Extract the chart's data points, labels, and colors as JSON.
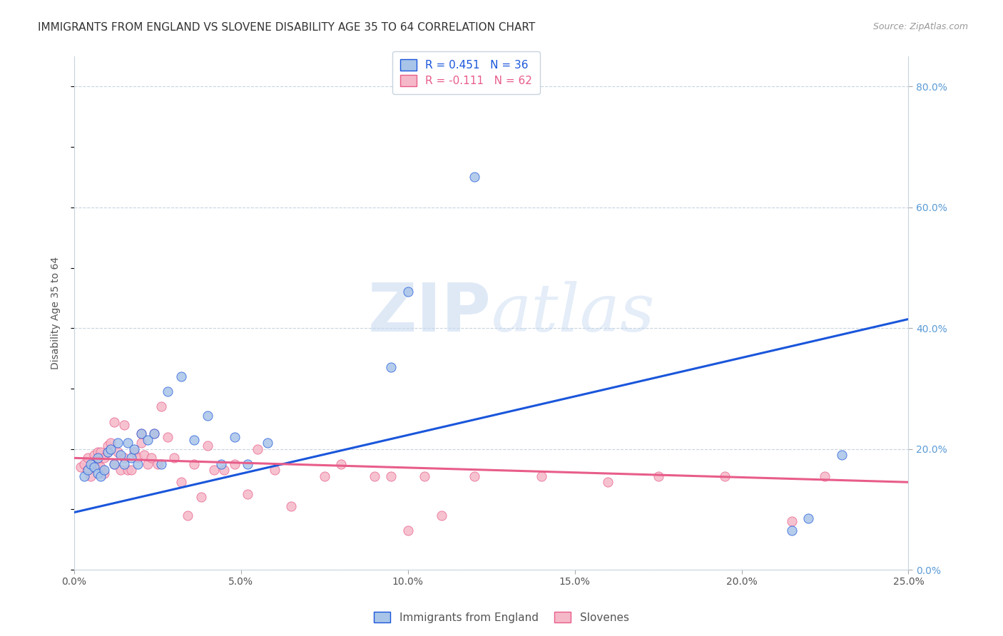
{
  "title": "IMMIGRANTS FROM ENGLAND VS SLOVENE DISABILITY AGE 35 TO 64 CORRELATION CHART",
  "source": "Source: ZipAtlas.com",
  "ylabel": "Disability Age 35 to 64",
  "xlim": [
    0.0,
    0.25
  ],
  "ylim": [
    0.0,
    0.85
  ],
  "xticks": [
    0.0,
    0.05,
    0.1,
    0.15,
    0.2,
    0.25
  ],
  "xtick_labels": [
    "0.0%",
    "5.0%",
    "10.0%",
    "15.0%",
    "20.0%",
    "25.0%"
  ],
  "yticks_right": [
    0.0,
    0.2,
    0.4,
    0.6,
    0.8
  ],
  "ytick_labels_right": [
    "0.0%",
    "20.0%",
    "40.0%",
    "60.0%",
    "80.0%"
  ],
  "blue_R": 0.451,
  "blue_N": 36,
  "pink_R": -0.111,
  "pink_N": 62,
  "blue_color": "#a8c4e8",
  "pink_color": "#f5b8c8",
  "blue_line_color": "#1a56db",
  "pink_line_color": "#e85d8a",
  "legend_label_blue": "Immigrants from England",
  "legend_label_pink": "Slovenes",
  "blue_scatter_x": [
    0.003,
    0.004,
    0.005,
    0.006,
    0.007,
    0.007,
    0.008,
    0.009,
    0.01,
    0.011,
    0.012,
    0.013,
    0.014,
    0.015,
    0.016,
    0.017,
    0.018,
    0.019,
    0.02,
    0.022,
    0.024,
    0.026,
    0.028,
    0.032,
    0.036,
    0.04,
    0.044,
    0.048,
    0.052,
    0.058,
    0.095,
    0.1,
    0.12,
    0.215,
    0.22,
    0.23
  ],
  "blue_scatter_y": [
    0.155,
    0.165,
    0.175,
    0.17,
    0.16,
    0.185,
    0.155,
    0.165,
    0.195,
    0.2,
    0.175,
    0.21,
    0.19,
    0.175,
    0.21,
    0.185,
    0.2,
    0.175,
    0.225,
    0.215,
    0.225,
    0.175,
    0.295,
    0.32,
    0.215,
    0.255,
    0.175,
    0.22,
    0.175,
    0.21,
    0.335,
    0.46,
    0.65,
    0.065,
    0.085,
    0.19
  ],
  "pink_scatter_x": [
    0.002,
    0.003,
    0.004,
    0.004,
    0.005,
    0.006,
    0.006,
    0.007,
    0.007,
    0.008,
    0.008,
    0.009,
    0.009,
    0.01,
    0.01,
    0.011,
    0.012,
    0.012,
    0.013,
    0.014,
    0.015,
    0.015,
    0.016,
    0.017,
    0.018,
    0.019,
    0.02,
    0.02,
    0.021,
    0.022,
    0.023,
    0.024,
    0.025,
    0.026,
    0.028,
    0.03,
    0.032,
    0.034,
    0.036,
    0.038,
    0.04,
    0.042,
    0.045,
    0.048,
    0.052,
    0.055,
    0.06,
    0.065,
    0.075,
    0.08,
    0.09,
    0.095,
    0.1,
    0.105,
    0.11,
    0.12,
    0.14,
    0.16,
    0.175,
    0.195,
    0.215,
    0.225
  ],
  "pink_scatter_y": [
    0.17,
    0.175,
    0.165,
    0.185,
    0.155,
    0.175,
    0.19,
    0.175,
    0.195,
    0.17,
    0.195,
    0.185,
    0.16,
    0.195,
    0.205,
    0.21,
    0.175,
    0.245,
    0.195,
    0.165,
    0.24,
    0.185,
    0.165,
    0.165,
    0.195,
    0.185,
    0.225,
    0.21,
    0.19,
    0.175,
    0.185,
    0.225,
    0.175,
    0.27,
    0.22,
    0.185,
    0.145,
    0.09,
    0.175,
    0.12,
    0.205,
    0.165,
    0.165,
    0.175,
    0.125,
    0.2,
    0.165,
    0.105,
    0.155,
    0.175,
    0.155,
    0.155,
    0.065,
    0.155,
    0.09,
    0.155,
    0.155,
    0.145,
    0.155,
    0.155,
    0.08,
    0.155
  ],
  "watermark_zip": "ZIP",
  "watermark_atlas": "atlas",
  "title_fontsize": 11,
  "axis_label_fontsize": 10,
  "tick_fontsize": 10,
  "legend_fontsize": 11,
  "blue_trend_x": [
    0.0,
    0.25
  ],
  "blue_trend_y": [
    0.095,
    0.415
  ],
  "pink_trend_x": [
    0.0,
    0.25
  ],
  "pink_trend_y": [
    0.185,
    0.145
  ]
}
